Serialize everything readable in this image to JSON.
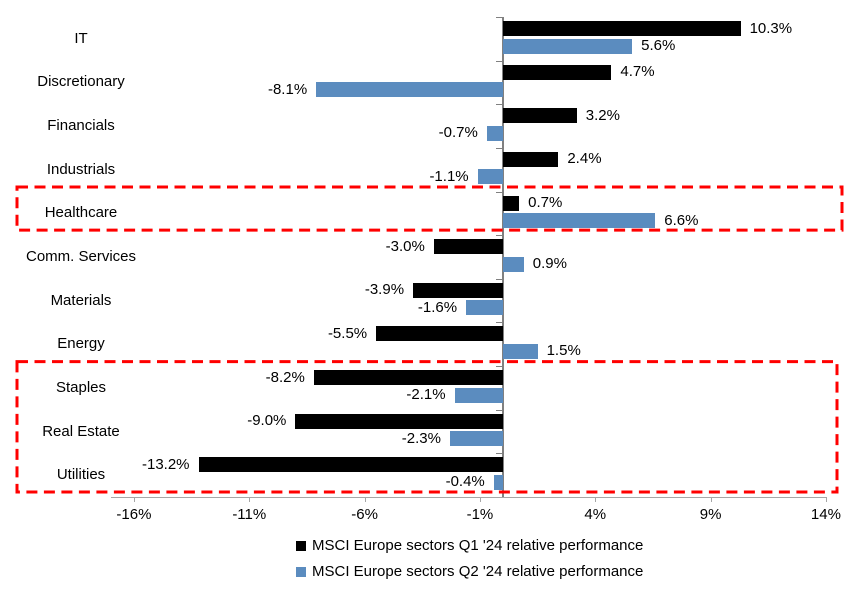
{
  "chart_data": {
    "type": "bar",
    "orientation": "horizontal",
    "title": "",
    "categories": [
      "IT",
      "Discretionary",
      "Financials",
      "Industrials",
      "Healthcare",
      "Comm. Services",
      "Materials",
      "Energy",
      "Staples",
      "Real Estate",
      "Utilities"
    ],
    "series": [
      {
        "name": "MSCI Europe sectors Q1 '24 relative performance",
        "color": "#000000",
        "values": [
          10.3,
          4.7,
          3.2,
          2.4,
          0.7,
          -3.0,
          -3.9,
          -5.5,
          -8.2,
          -9.0,
          -13.2
        ],
        "labels": [
          "10.3%",
          "4.7%",
          "3.2%",
          "2.4%",
          "0.7%",
          "-3.0%",
          "-3.9%",
          "-5.5%",
          "-8.2%",
          "-9.0%",
          "-13.2%"
        ]
      },
      {
        "name": "MSCI Europe sectors Q2 '24 relative performance",
        "color": "#5B8CBF",
        "values": [
          5.6,
          -8.1,
          -0.7,
          -1.1,
          6.6,
          0.9,
          -1.6,
          1.5,
          -2.1,
          -2.3,
          -0.4
        ],
        "labels": [
          "5.6%",
          "-8.1%",
          "-0.7%",
          "-1.1%",
          "6.6%",
          "0.9%",
          "-1.6%",
          "1.5%",
          "-2.1%",
          "-2.3%",
          "-0.4%"
        ]
      }
    ],
    "x_axis": {
      "tick_labels": [
        "-16%",
        "-11%",
        "-6%",
        "-1%",
        "4%",
        "9%",
        "14%"
      ],
      "tick_values": [
        -16,
        -11,
        -6,
        -1,
        4,
        9,
        14
      ],
      "min": -17,
      "max": 14,
      "unit": "%"
    },
    "grid": false,
    "legend_position": "bottom",
    "highlight_color": "#FF0000",
    "highlights": [
      {
        "rows": [
          "Healthcare"
        ]
      },
      {
        "rows": [
          "Staples",
          "Real Estate",
          "Utilities"
        ]
      }
    ]
  }
}
